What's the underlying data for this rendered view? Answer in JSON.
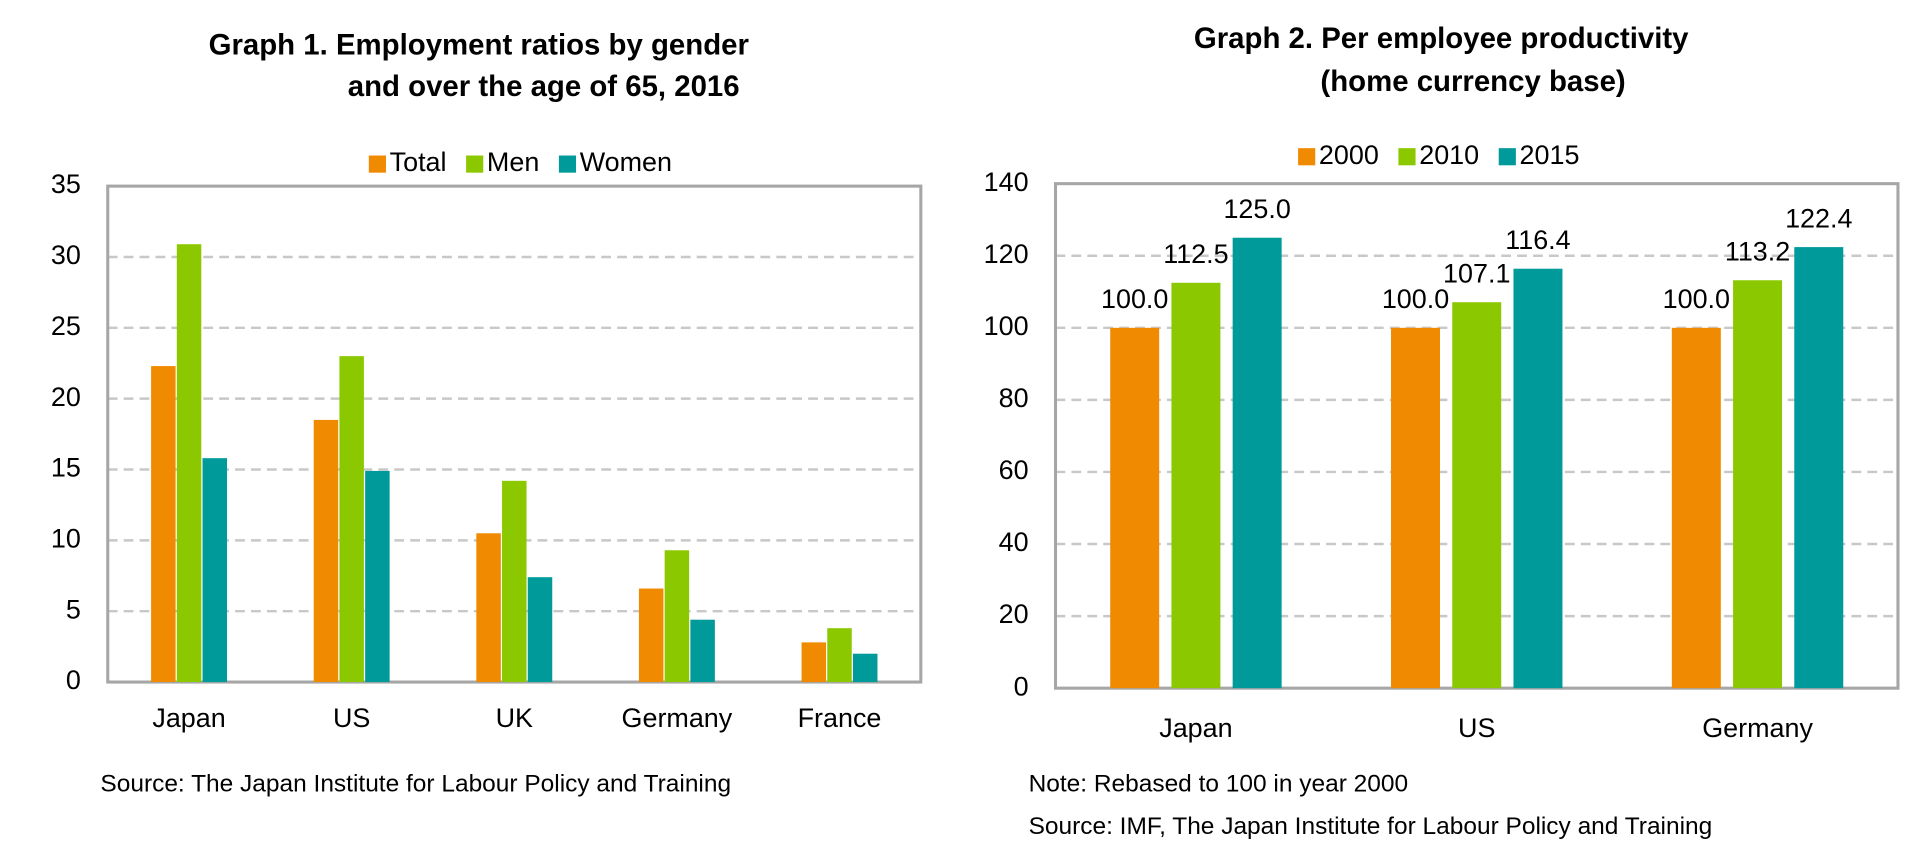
{
  "chart_data": [
    {
      "type": "bar",
      "title": [
        "Graph 1. Employment ratios by gender",
        "and over the age of 65, 2016"
      ],
      "categories": [
        "Japan",
        "US",
        "UK",
        "Germany",
        "France"
      ],
      "series": [
        {
          "name": "Total",
          "color": "#f08a00",
          "values": [
            22.3,
            18.5,
            10.5,
            6.6,
            2.8
          ]
        },
        {
          "name": "Men",
          "color": "#8cc800",
          "values": [
            30.9,
            23.0,
            14.2,
            9.3,
            3.8
          ]
        },
        {
          "name": "Women",
          "color": "#009a9a",
          "values": [
            15.8,
            14.9,
            7.4,
            4.4,
            2.0
          ]
        }
      ],
      "ylim": [
        0,
        35
      ],
      "yticks": [
        0,
        5,
        10,
        15,
        20,
        25,
        30,
        35
      ],
      "grid": true,
      "legend": "top",
      "source": "Source: The Japan Institute for Labour Policy and Training"
    },
    {
      "type": "bar",
      "title": [
        "Graph 2. Per employee productivity",
        "(home currency base)"
      ],
      "categories": [
        "Japan",
        "US",
        "Germany"
      ],
      "series": [
        {
          "name": "2000",
          "color": "#f08a00",
          "values": [
            100,
            100,
            100
          ],
          "value_labels": [
            "100.0",
            "100.0",
            "100.0"
          ]
        },
        {
          "name": "2010",
          "color": "#8cc800",
          "values": [
            112.5,
            107.1,
            113.2
          ],
          "value_labels": [
            "112.5",
            "107.1",
            "113.2"
          ]
        },
        {
          "name": "2015",
          "color": "#009a9a",
          "values": [
            125,
            116.4,
            122.4
          ],
          "value_labels": [
            "125.0",
            "116.4",
            "122.4"
          ]
        }
      ],
      "ylim": [
        0,
        140
      ],
      "yticks": [
        0,
        20,
        40,
        60,
        80,
        100,
        120,
        140
      ],
      "grid": true,
      "legend": "top",
      "note": "Note:  Rebased to 100 in year 2000",
      "source": "Source:  IMF, The Japan Institute for Labour Policy and Training"
    }
  ]
}
